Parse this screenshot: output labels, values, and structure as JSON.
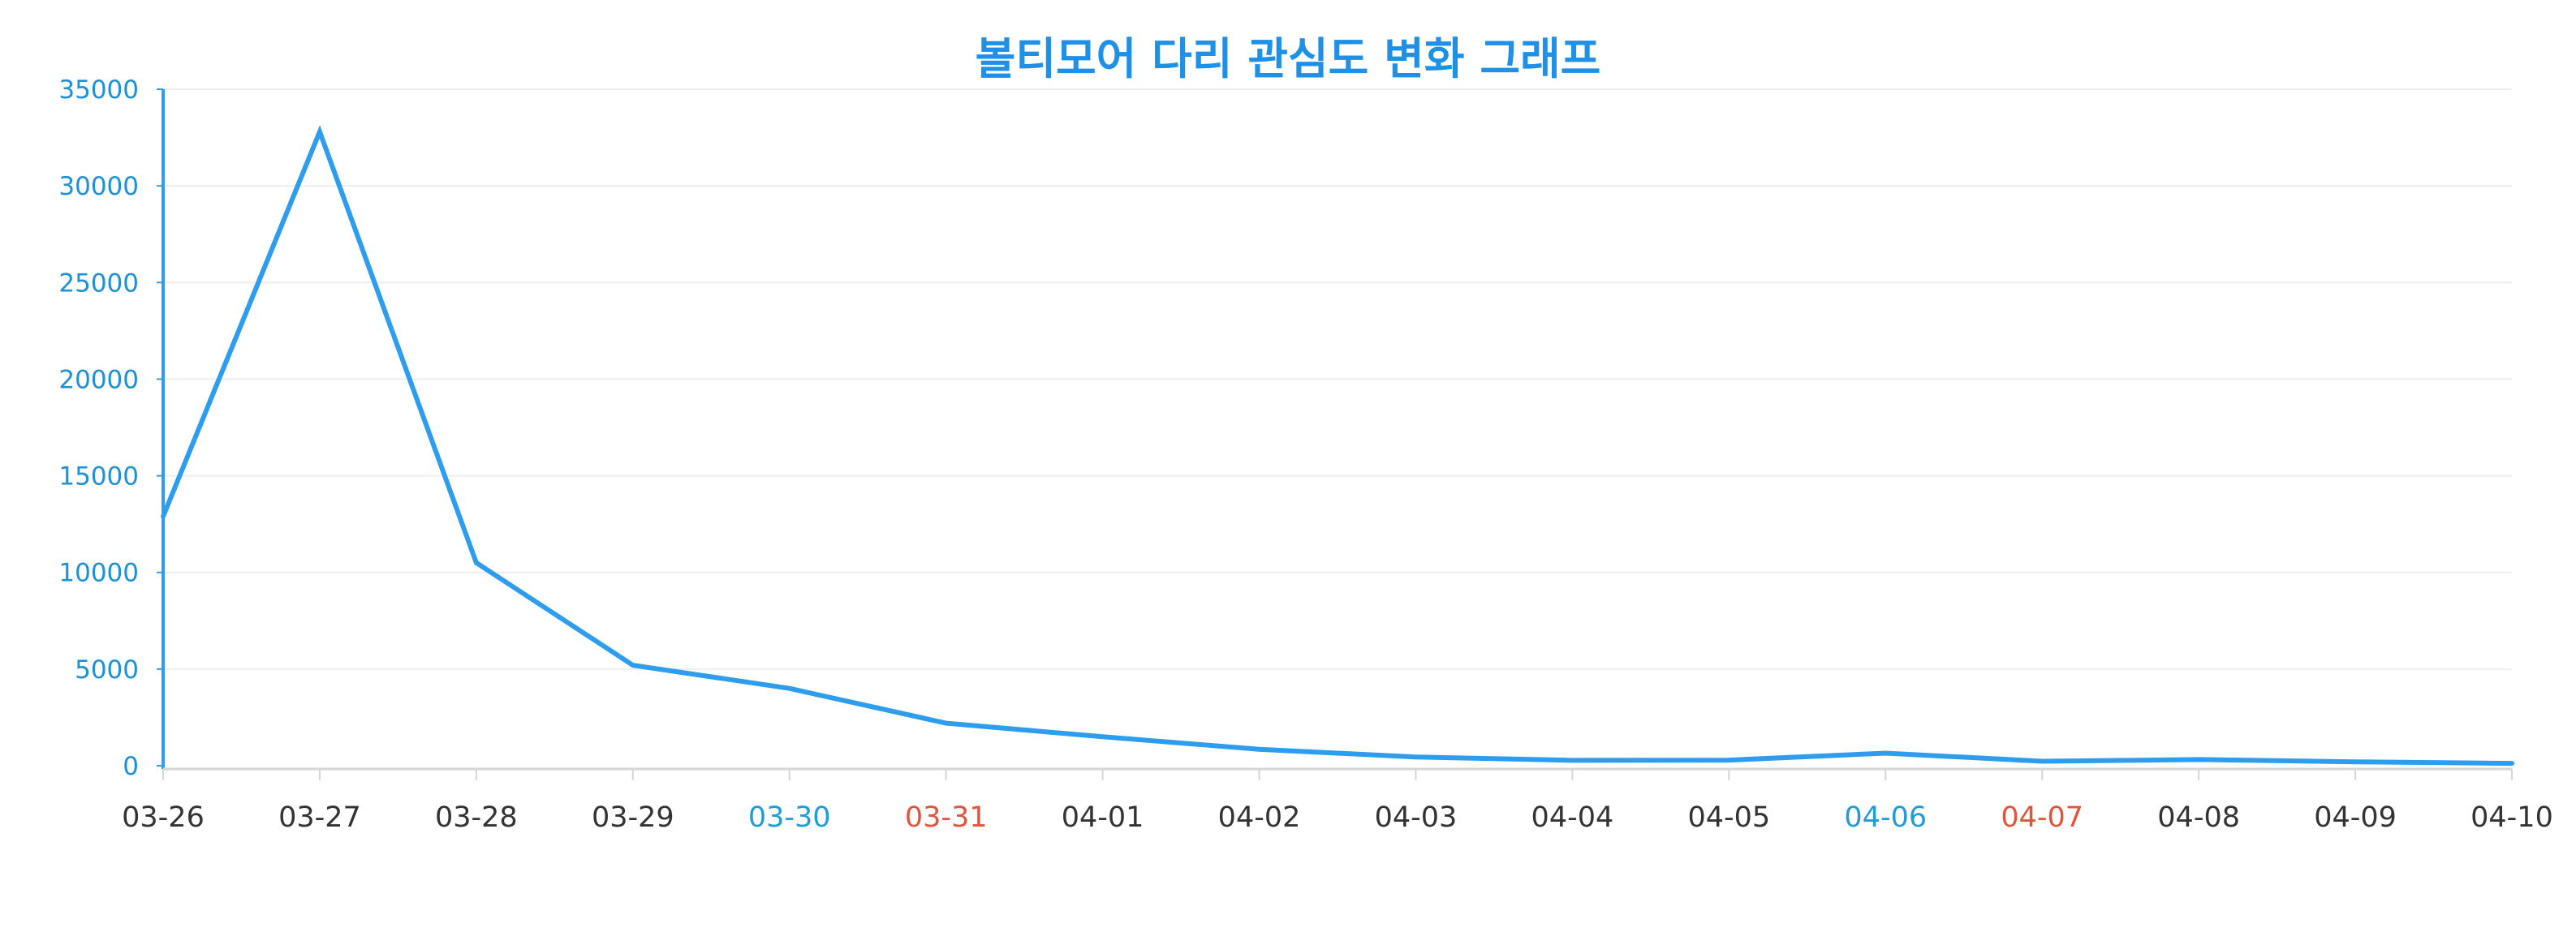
{
  "chart_data": {
    "type": "line",
    "title": "볼티모어 다리 관심도 변화 그래프",
    "xlabel": "",
    "ylabel": "",
    "categories": [
      "03-26",
      "03-27",
      "03-28",
      "03-29",
      "03-30",
      "03-31",
      "04-01",
      "04-02",
      "04-03",
      "04-04",
      "04-05",
      "04-06",
      "04-07",
      "04-08",
      "04-09",
      "04-10"
    ],
    "series": [
      {
        "values": [
          12900,
          32800,
          10500,
          5200,
          4000,
          2200,
          1500,
          850,
          450,
          280,
          290,
          650,
          230,
          320,
          200,
          120
        ]
      }
    ],
    "ylim": [
      0,
      35000
    ],
    "yticks": [
      0,
      5000,
      10000,
      15000,
      20000,
      25000,
      30000,
      35000
    ],
    "grid": true,
    "legend": "none",
    "colors": {
      "title": "#1e90e6",
      "line": "#2f9ded",
      "y_axis": "#2f9ded",
      "y_tick_label": "#1e90d6",
      "x_tick_default": "#333333",
      "x_tick_saturday": "#1e9dd6",
      "x_tick_sunday": "#e0553c",
      "gridline": "#eeeeee",
      "x_axis": "#d6d6d6"
    },
    "x_tick_colors": [
      "default",
      "default",
      "default",
      "default",
      "saturday",
      "sunday",
      "default",
      "default",
      "default",
      "default",
      "default",
      "saturday",
      "sunday",
      "default",
      "default",
      "default"
    ]
  }
}
